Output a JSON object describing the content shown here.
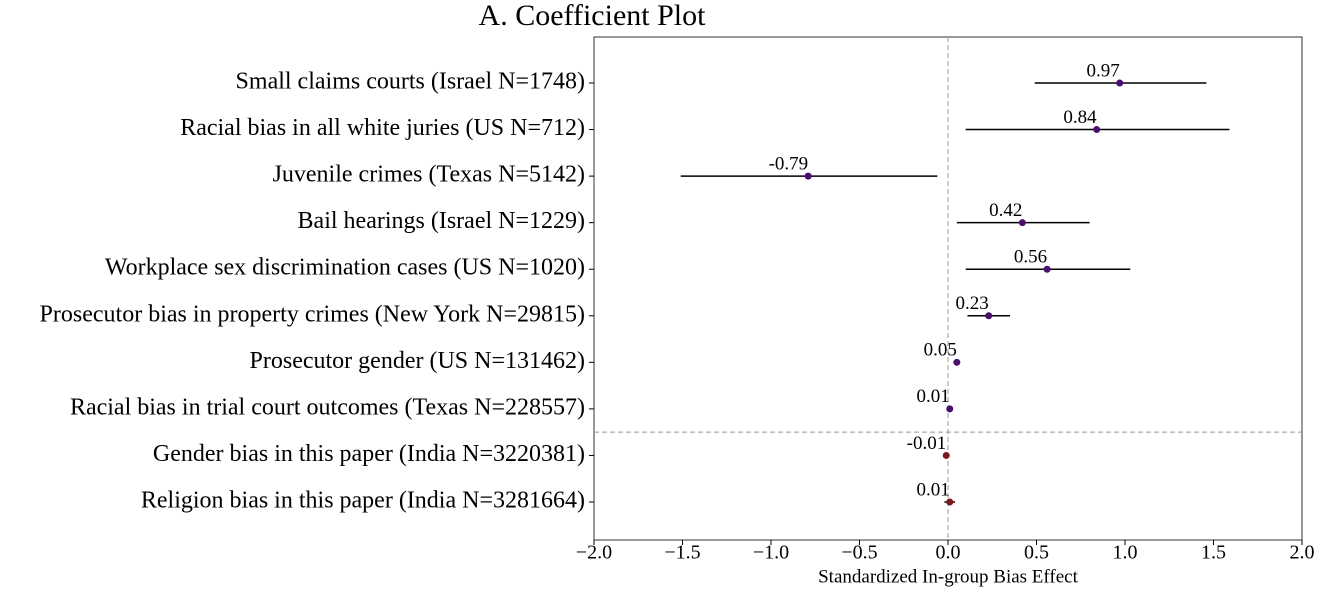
{
  "chart_data": {
    "type": "coefficient",
    "title": "A. Coefficient Plot",
    "xlabel": "Standardized In-group Bias Effect",
    "categories": [
      "Small claims courts (Israel N=1748)",
      "Racial bias in all white juries (US N=712)",
      "Juvenile crimes (Texas N=5142)",
      "Bail hearings (Israel N=1229)",
      "Workplace sex discrimination cases (US N=1020)",
      "Prosecutor bias in property crimes (New York N=29815)",
      "Prosecutor gender (US N=131462)",
      "Racial bias in trial court outcomes (Texas N=228557)",
      "Gender bias in this paper (India N=3220381)",
      "Religion bias in this paper (India N=3281664)"
    ],
    "values": [
      0.97,
      0.84,
      -0.79,
      0.42,
      0.56,
      0.23,
      0.05,
      0.01,
      -0.01,
      0.01
    ],
    "ci_low": [
      0.49,
      0.1,
      -1.51,
      0.05,
      0.1,
      0.11,
      0.04,
      0.0,
      -0.02,
      -0.02
    ],
    "ci_high": [
      1.46,
      1.59,
      -0.06,
      0.8,
      1.03,
      0.35,
      0.06,
      0.02,
      0.0,
      0.04
    ],
    "colors": [
      "#4b0e6e",
      "#4b0e6e",
      "#4b0e6e",
      "#4b0e6e",
      "#4b0e6e",
      "#4b0e6e",
      "#4b0e6e",
      "#4b0e6e",
      "#7a1a1a",
      "#7a1a1a"
    ],
    "xlim": [
      -2.0,
      2.0
    ],
    "xticks": [
      {
        "value": -2.0,
        "label": "−2.0"
      },
      {
        "value": -1.5,
        "label": "−1.5"
      },
      {
        "value": -1.0,
        "label": "−1.0"
      },
      {
        "value": -0.5,
        "label": "−0.5"
      },
      {
        "value": 0.0,
        "label": "0.0"
      },
      {
        "value": 0.5,
        "label": "0.5"
      },
      {
        "value": 1.0,
        "label": "1.0"
      },
      {
        "value": 1.5,
        "label": "1.5"
      },
      {
        "value": 2.0,
        "label": "2.0"
      }
    ]
  }
}
